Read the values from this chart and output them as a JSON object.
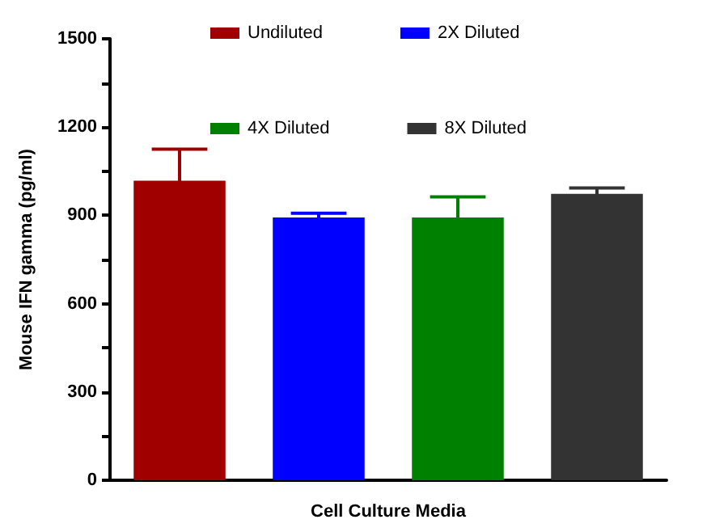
{
  "chart_data": {
    "type": "bar",
    "xlabel": "Cell Culture Media",
    "ylabel": "Mouse IFN gamma (pg/ml)",
    "categories": [
      null,
      null,
      null,
      null
    ],
    "series": [
      {
        "name": "Undiluted",
        "color": "#a00000",
        "values": [
          1018,
          null,
          null,
          null
        ],
        "errors": [
          107,
          null,
          null,
          null
        ]
      },
      {
        "name": "2X Diluted",
        "color": "#0000ff",
        "values": [
          null,
          893,
          null,
          null
        ],
        "errors": [
          null,
          14,
          null,
          null
        ]
      },
      {
        "name": "4X Diluted",
        "color": "#008000",
        "values": [
          null,
          null,
          893,
          null
        ],
        "errors": [
          null,
          null,
          70,
          null
        ]
      },
      {
        "name": "8X Diluted",
        "color": "#333333",
        "values": [
          null,
          null,
          null,
          973
        ],
        "errors": [
          null,
          null,
          null,
          20
        ]
      }
    ],
    "ylim": [
      0,
      1500
    ],
    "yticks": [
      0,
      {
        "value": 150,
        "label": null
      },
      300,
      {
        "value": 450,
        "label": null
      },
      600,
      {
        "value": 750,
        "label": null
      },
      900,
      {
        "value": 1050,
        "label": null
      },
      1200,
      {
        "value": 1350,
        "label": null
      },
      1500
    ],
    "grid": false,
    "legend": "top"
  }
}
